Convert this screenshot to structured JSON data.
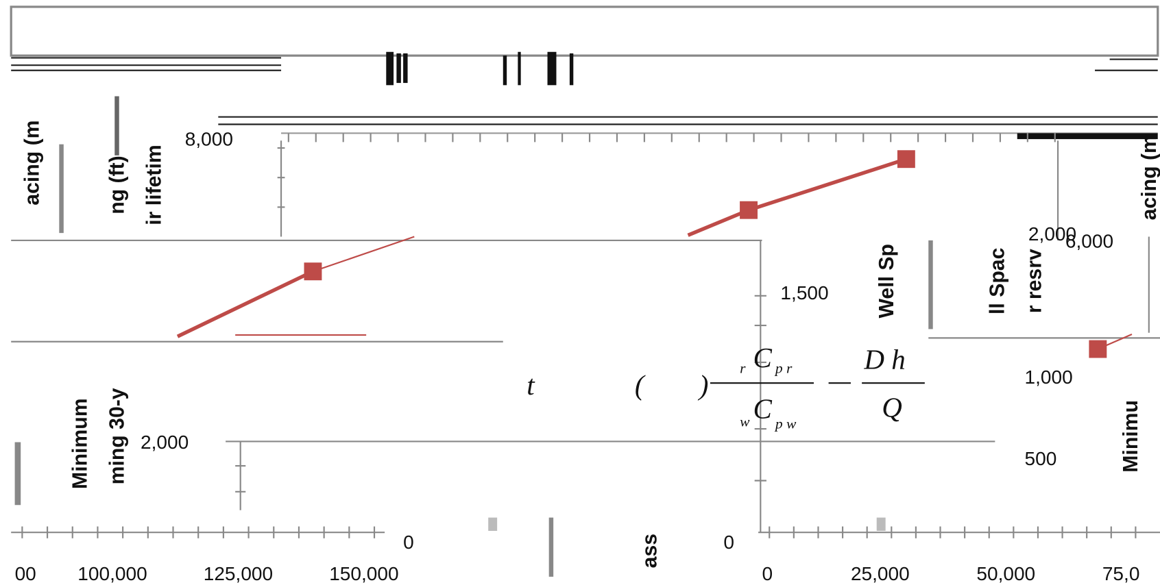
{
  "axis_labels": {
    "left_1": "acing (m",
    "left_2": "ng (ft)",
    "left_3": "ir lifetim",
    "left_4": "Minimum",
    "left_5": "ming 30-y",
    "right_1": "acing (m",
    "right_2": "Well Sp",
    "right_3": "ll Spac",
    "right_4": "r resrv",
    "right_5": "Minimu",
    "bottom": "ass"
  },
  "tick_labels": [
    "8,000",
    "2,000",
    "1,500",
    "6,000",
    "1,000",
    "2,000",
    "500",
    "0",
    "0"
  ],
  "x_tick_labels": [
    "00",
    "100,000",
    "125,000",
    "150,000",
    "0",
    "25,000",
    "50,000",
    "75,0"
  ],
  "equation": {
    "t": "t",
    "lparen": "(",
    "rparen": ")",
    "num1_pre": "r",
    "num1": "C",
    "num1_sub": "p r",
    "den1_pre": "w",
    "den1": "C",
    "den1_sub": "p w",
    "num2": "D  h",
    "den2": "Q"
  }
}
